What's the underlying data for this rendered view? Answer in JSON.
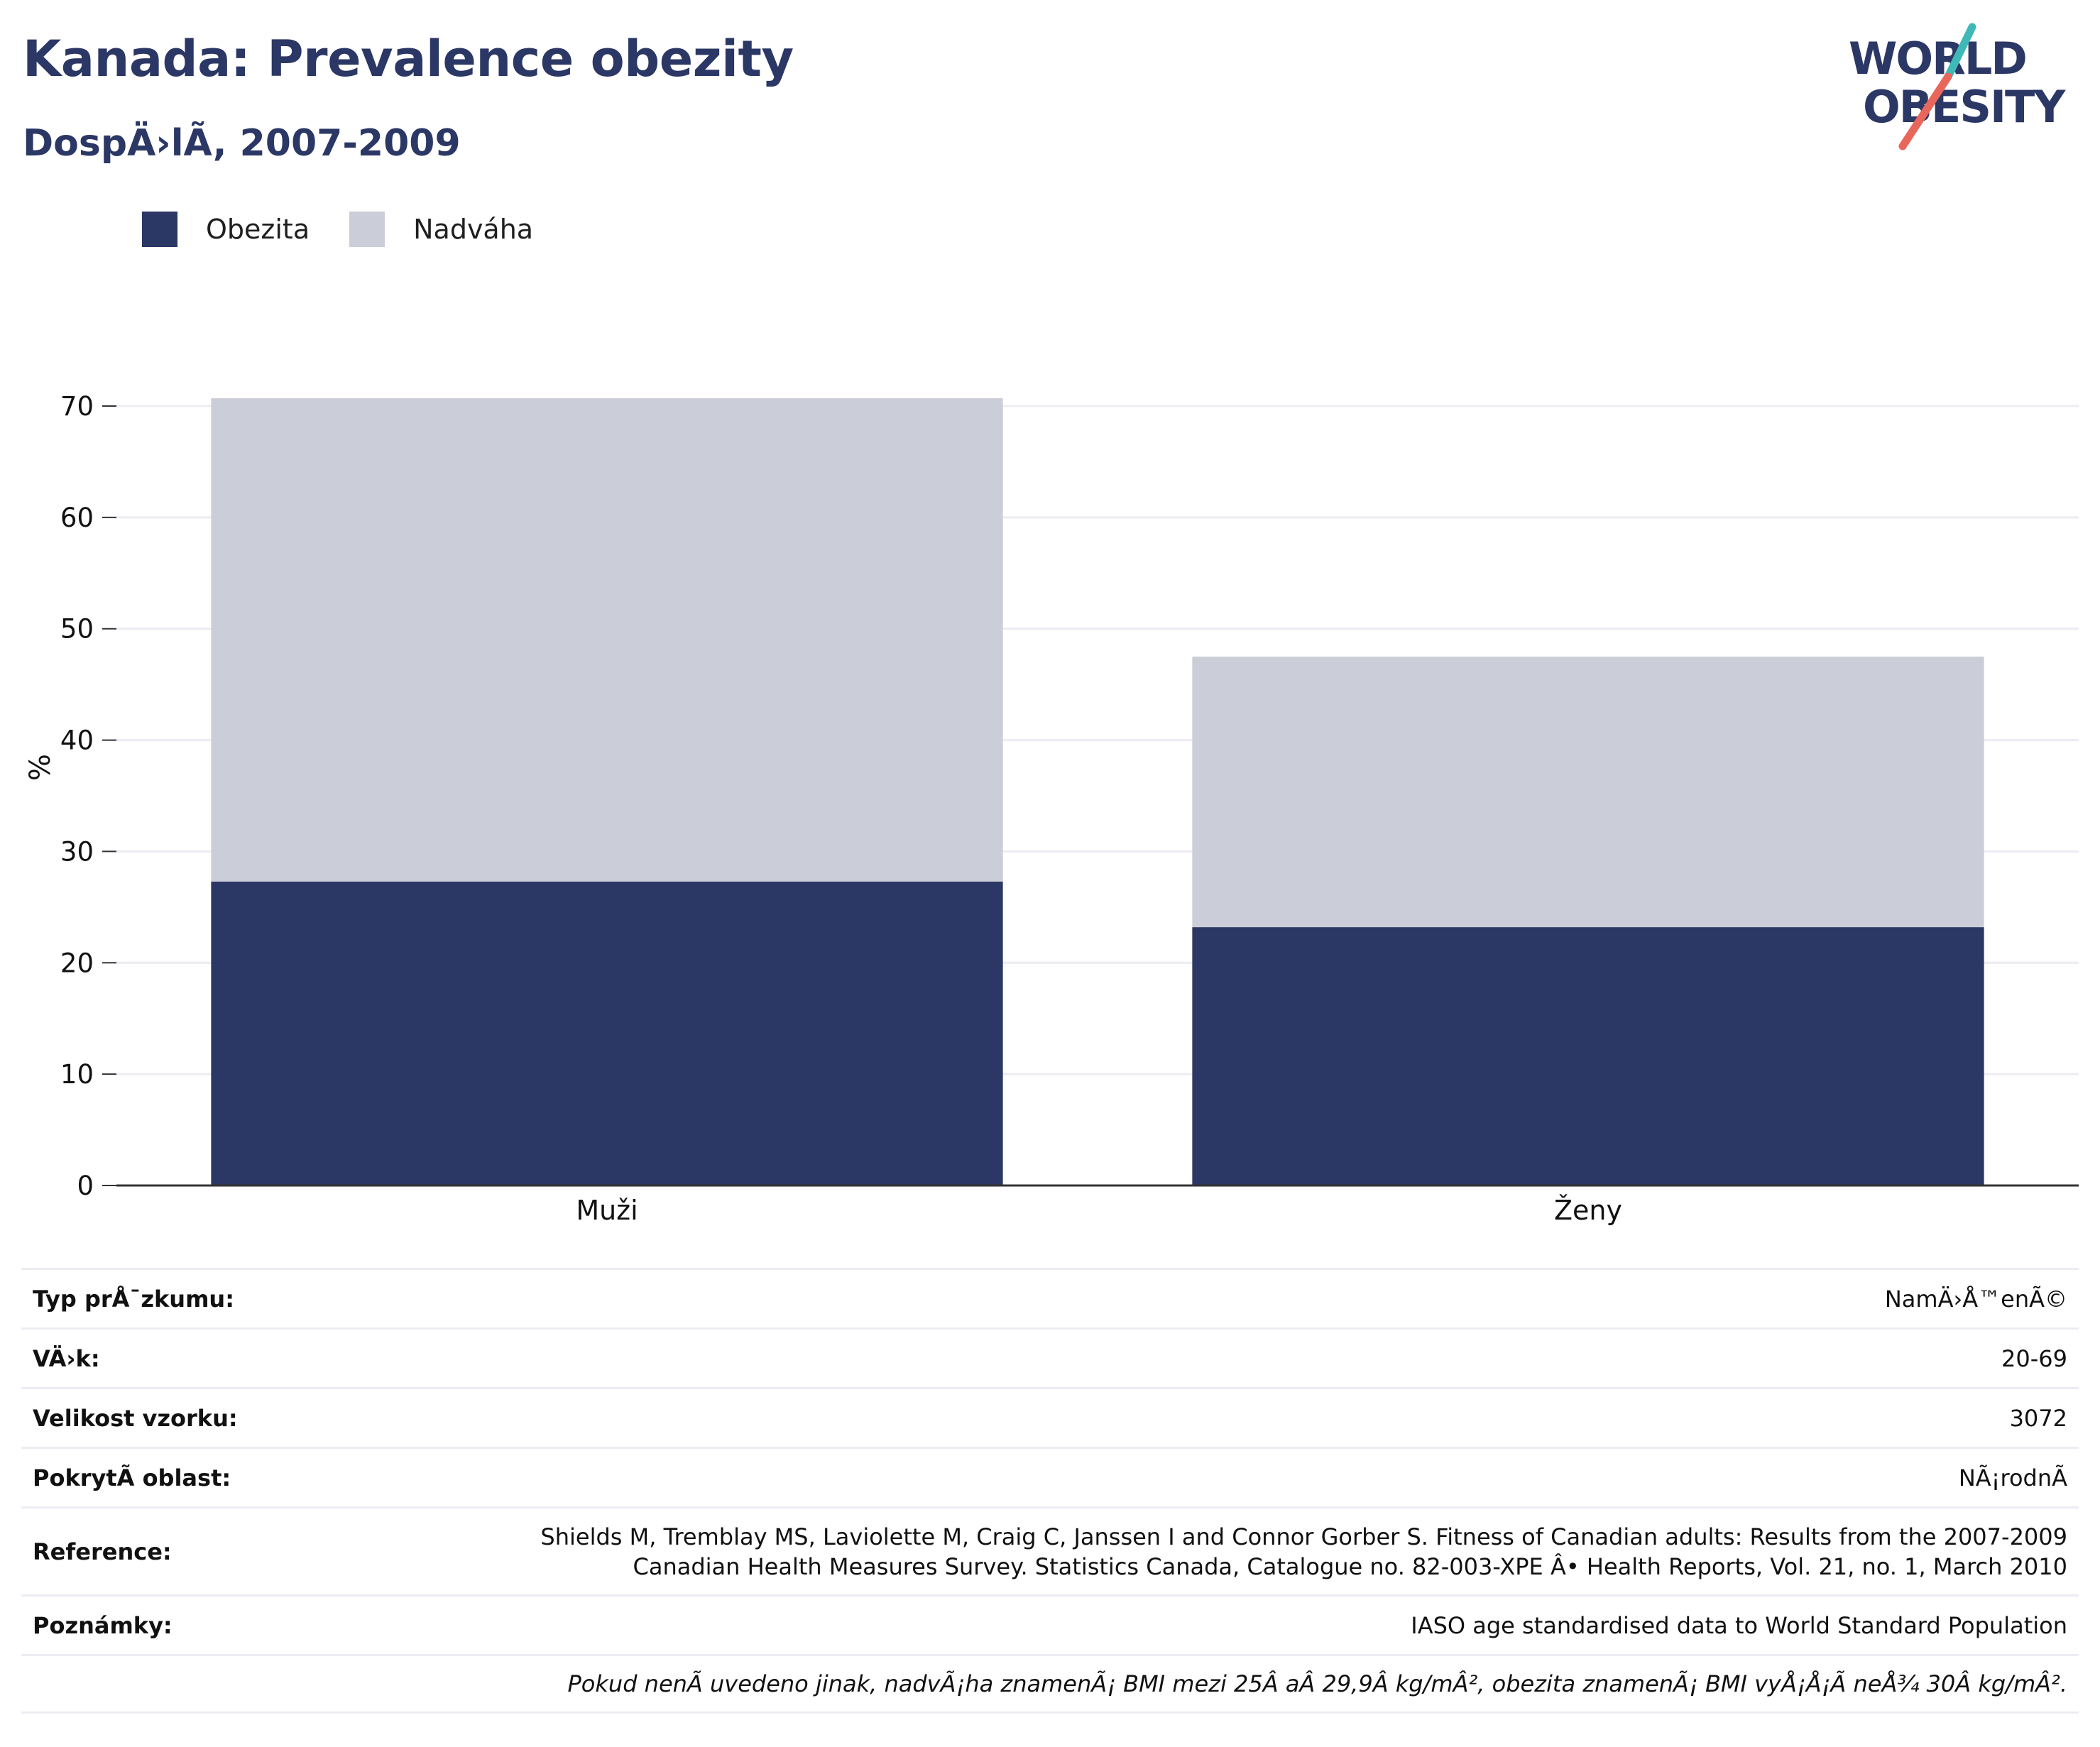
{
  "header": {
    "title": "Kanada: Prevalence obezity",
    "subtitle": "DospÄ›lÃ­, 2007-2009"
  },
  "logo": {
    "line1": "WORLD",
    "line2": "OBESITY",
    "colors": {
      "text": "#2b3765",
      "slash_top": "#3fb8b8",
      "slash_bottom": "#e8665a"
    }
  },
  "legend": [
    {
      "label": "Obezita",
      "color": "#2b3765"
    },
    {
      "label": "Nadváha",
      "color": "#cbcdd8"
    }
  ],
  "chart_data": {
    "type": "bar",
    "stacked": true,
    "categories": [
      "Muži",
      "Ženy"
    ],
    "series": [
      {
        "name": "Obezita",
        "values": [
          27.3,
          23.2
        ],
        "color": "#2b3765"
      },
      {
        "name": "Nadváha",
        "values": [
          43.4,
          24.3
        ],
        "color": "#cbcdd8"
      }
    ],
    "ylabel": "%",
    "ylim": [
      0,
      70
    ],
    "yticks": [
      0,
      10,
      20,
      30,
      40,
      50,
      60,
      70
    ],
    "grid": true,
    "legend_position": "top-left"
  },
  "info": [
    {
      "key": "Typ prÅ¯zkumu:",
      "value": "NamÄ›Å™enÃ©"
    },
    {
      "key": "VÄ›k:",
      "value": "20-69"
    },
    {
      "key": "Velikost vzorku:",
      "value": "3072"
    },
    {
      "key": "PokrytÃ­ oblast:",
      "value": "NÃ¡rodnÃ­"
    },
    {
      "key": "Reference:",
      "value_lines": [
        "Shields M, Tremblay MS, Laviolette M, Craig C, Janssen I and Connor Gorber S. Fitness of Canadian adults: Results from the 2007-2009",
        "Canadian Health Measures Survey. Statistics Canada, Catalogue no. 82-003-XPE Â• Health Reports, Vol. 21, no. 1, March 2010"
      ]
    },
    {
      "key": "Poznámky:",
      "value": "IASO age standardised data to World Standard Population"
    }
  ],
  "footnote": "Pokud nenÃ­ uvedeno jinak, nadvÃ¡ha znamenÃ¡ BMI mezi 25Â aÂ 29,9Â kg/mÂ², obezita znamenÃ¡ BMI vyÅ¡Å¡Ã­ neÅ¾ 30Â kg/mÂ²."
}
